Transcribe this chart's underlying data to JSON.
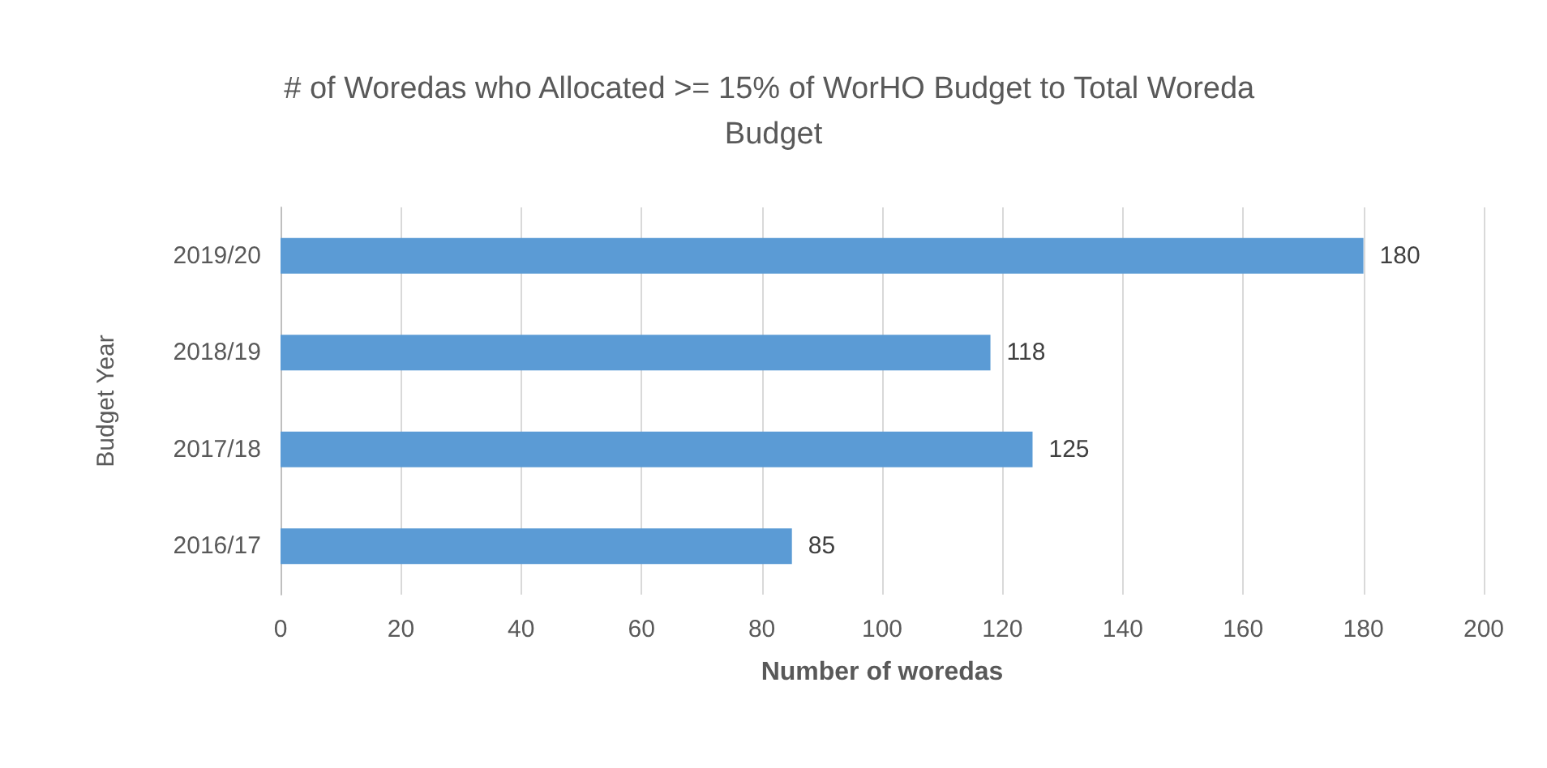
{
  "chart_data": {
    "type": "bar",
    "orientation": "horizontal",
    "title": "# of Woredas who Allocated >= 15% of WorHO Budget to Total Woreda Budget",
    "xlabel": "Number of woredas",
    "ylabel": "Budget Year",
    "categories": [
      "2019/20",
      "2018/19",
      "2017/18",
      "2016/17"
    ],
    "values": [
      180,
      118,
      125,
      85
    ],
    "color": "#5b9bd5",
    "data_labels": true,
    "xlim": [
      0,
      200
    ],
    "xticks": [
      0,
      20,
      40,
      60,
      80,
      100,
      120,
      140,
      160,
      180,
      200
    ],
    "grid": "x"
  }
}
